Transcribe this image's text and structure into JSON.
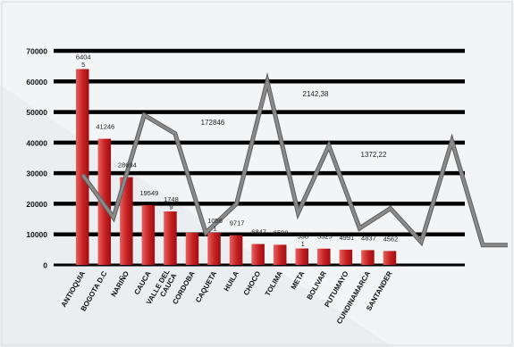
{
  "chart_data": {
    "type": "bar",
    "categories": [
      "ANTIOQUIA",
      "BOGOTA D.C",
      "NARIÑO",
      "CAUCA",
      "VALLE DEL CAUCA",
      "CORDOBA",
      "CAQUETA",
      "HUILA",
      "CHOCO",
      "TOLIMA",
      "META",
      "BOLIVAR",
      "PUTUMAYO",
      "CUNDINAMARCA",
      "SANTANDER"
    ],
    "category_lines": [
      [
        "ANTIOQUIA"
      ],
      [
        "BOGOTA D.C"
      ],
      [
        "NARIÑO"
      ],
      [
        "CAUCA"
      ],
      [
        "VALLE DEL",
        "CAUCA"
      ],
      [
        "CORDOBA"
      ],
      [
        "CAQUETA"
      ],
      [
        "HUILA"
      ],
      [
        "CHOCO"
      ],
      [
        "TOLIMA"
      ],
      [
        "META"
      ],
      [
        "BOLIVAR"
      ],
      [
        "PUTUMAYO"
      ],
      [
        "CUNDINAMARCA"
      ],
      [
        "SANTANDER"
      ]
    ],
    "values": [
      64045,
      41246,
      28694,
      19549,
      17489,
      10561,
      10561,
      9717,
      6847,
      6598,
      5381,
      5325,
      4991,
      4837,
      4562
    ],
    "bar_labels": [
      [
        "6404",
        "5"
      ],
      [
        "41246"
      ],
      [
        "28694"
      ],
      [
        "19549"
      ],
      [
        "1748",
        "9"
      ],
      [],
      [
        "1056",
        "1"
      ],
      [
        "9717"
      ],
      [
        "6847"
      ],
      [
        "6598"
      ],
      [
        "538",
        "1"
      ],
      [
        "5325"
      ],
      [
        "4991"
      ],
      [
        "4837"
      ],
      [
        "4562"
      ]
    ],
    "line_values": [
      29500,
      15500,
      49000,
      43000,
      10500,
      20000,
      60000,
      17000,
      39000,
      12000,
      18500,
      7500,
      40500,
      6500,
      6500
    ],
    "annotations": [
      "172846",
      "2142,38",
      "1372,22"
    ],
    "y_ticks": [
      "0",
      "10000",
      "20000",
      "30000",
      "40000",
      "50000",
      "60000",
      "70000"
    ],
    "ylim": [
      0,
      70000
    ],
    "title": "",
    "xlabel": "",
    "ylabel": "",
    "grid": true,
    "colors": {
      "bar_light": "#e8605d",
      "bar_dark": "#9e0f11",
      "line": "#8a8a8a",
      "grid": "#000000"
    }
  }
}
